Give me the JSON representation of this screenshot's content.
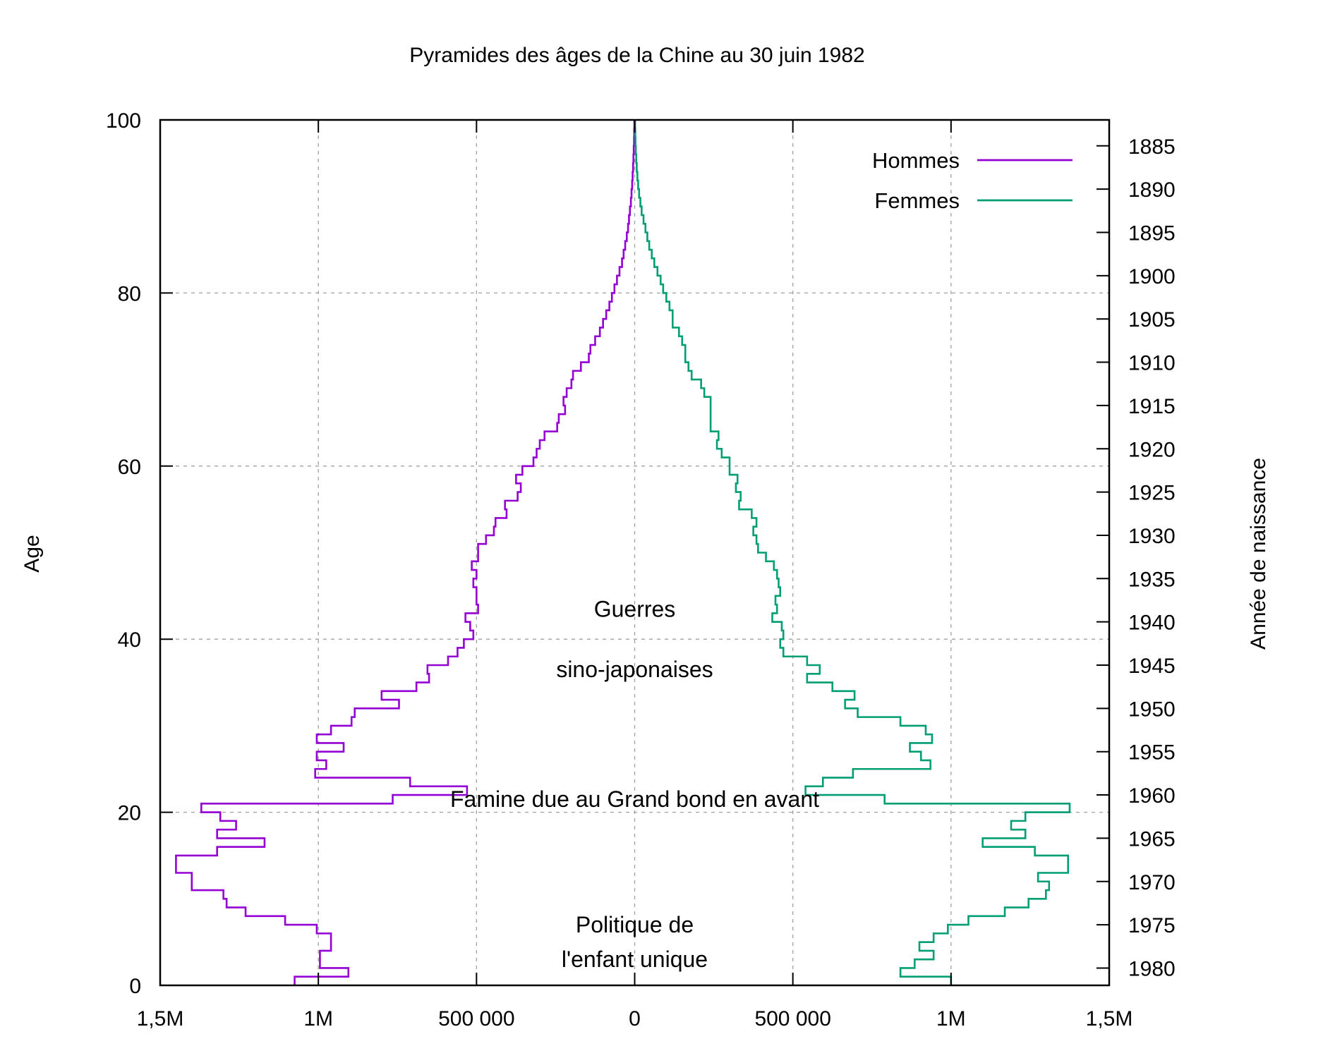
{
  "chart_data": {
    "type": "line",
    "title": "Pyramides des âges de la Chine au 30 juin 1982",
    "ylabel": "Age",
    "y2label": "Année de naissance",
    "xlim": [
      -1500000,
      1500000
    ],
    "ylim": [
      0,
      100
    ],
    "x_ticks": [
      {
        "value": -1500000,
        "label": "1,5M"
      },
      {
        "value": -1000000,
        "label": "1M"
      },
      {
        "value": -500000,
        "label": "500 000"
      },
      {
        "value": 0,
        "label": "0"
      },
      {
        "value": 500000,
        "label": "500 000"
      },
      {
        "value": 1000000,
        "label": "1M"
      },
      {
        "value": 1500000,
        "label": "1,5M"
      }
    ],
    "y_ticks": [
      {
        "value": 0,
        "label": "0"
      },
      {
        "value": 20,
        "label": "20"
      },
      {
        "value": 40,
        "label": "40"
      },
      {
        "value": 60,
        "label": "60"
      },
      {
        "value": 80,
        "label": "80"
      },
      {
        "value": 100,
        "label": "100"
      }
    ],
    "y2_ticks": [
      {
        "age": 97,
        "label": "1885"
      },
      {
        "age": 92,
        "label": "1890"
      },
      {
        "age": 87,
        "label": "1895"
      },
      {
        "age": 82,
        "label": "1900"
      },
      {
        "age": 77,
        "label": "1905"
      },
      {
        "age": 72,
        "label": "1910"
      },
      {
        "age": 67,
        "label": "1915"
      },
      {
        "age": 62,
        "label": "1920"
      },
      {
        "age": 57,
        "label": "1925"
      },
      {
        "age": 52,
        "label": "1930"
      },
      {
        "age": 47,
        "label": "1935"
      },
      {
        "age": 42,
        "label": "1940"
      },
      {
        "age": 37,
        "label": "1945"
      },
      {
        "age": 32,
        "label": "1950"
      },
      {
        "age": 27,
        "label": "1955"
      },
      {
        "age": 22,
        "label": "1960"
      },
      {
        "age": 17,
        "label": "1965"
      },
      {
        "age": 12,
        "label": "1970"
      },
      {
        "age": 7,
        "label": "1975"
      },
      {
        "age": 2,
        "label": "1980"
      }
    ],
    "grid": true,
    "legend_position": "top-right",
    "age_groups": [
      0,
      1,
      2,
      3,
      4,
      5,
      6,
      7,
      8,
      9,
      10,
      11,
      12,
      13,
      14,
      15,
      16,
      17,
      18,
      19,
      20,
      21,
      22,
      23,
      24,
      25,
      26,
      27,
      28,
      29,
      30,
      31,
      32,
      33,
      34,
      35,
      36,
      37,
      38,
      39,
      40,
      41,
      42,
      43,
      44,
      45,
      46,
      47,
      48,
      49,
      50,
      51,
      52,
      53,
      54,
      55,
      56,
      57,
      58,
      59,
      60,
      61,
      62,
      63,
      64,
      65,
      66,
      67,
      68,
      69,
      70,
      71,
      72,
      73,
      74,
      75,
      76,
      77,
      78,
      79,
      80,
      81,
      82,
      83,
      84,
      85,
      86,
      87,
      88,
      89,
      90,
      91,
      92,
      93,
      94,
      95,
      96,
      97,
      98,
      99
    ],
    "series": [
      {
        "name": "Hommes",
        "color": "#9400d3",
        "values": [
          1075000,
          905000,
          995000,
          995000,
          960000,
          960000,
          1005000,
          1105000,
          1230000,
          1290000,
          1300000,
          1400000,
          1400000,
          1450000,
          1450000,
          1320000,
          1170000,
          1320000,
          1260000,
          1310000,
          1370000,
          765000,
          530000,
          710000,
          1010000,
          975000,
          1005000,
          920000,
          1005000,
          960000,
          895000,
          885000,
          745000,
          800000,
          690000,
          650000,
          655000,
          590000,
          560000,
          540000,
          510000,
          520000,
          535000,
          495000,
          500000,
          500000,
          510000,
          500000,
          515000,
          495000,
          495000,
          470000,
          445000,
          440000,
          405000,
          410000,
          370000,
          360000,
          375000,
          355000,
          320000,
          310000,
          300000,
          285000,
          245000,
          240000,
          220000,
          225000,
          215000,
          200000,
          195000,
          170000,
          145000,
          140000,
          125000,
          110000,
          100000,
          90000,
          80000,
          72000,
          64000,
          56000,
          48000,
          40000,
          35000,
          30000,
          25000,
          21000,
          18000,
          15000,
          12000,
          10000,
          8000,
          6500,
          5000,
          4000,
          3000,
          2000,
          1500,
          1000
        ]
      },
      {
        "name": "Femmes",
        "color": "#009e73",
        "values": [
          1000000,
          840000,
          885000,
          945000,
          900000,
          945000,
          990000,
          1055000,
          1170000,
          1245000,
          1300000,
          1310000,
          1275000,
          1370000,
          1370000,
          1265000,
          1100000,
          1235000,
          1190000,
          1235000,
          1375000,
          790000,
          540000,
          595000,
          690000,
          935000,
          905000,
          870000,
          940000,
          920000,
          840000,
          705000,
          665000,
          695000,
          625000,
          545000,
          585000,
          545000,
          470000,
          460000,
          470000,
          465000,
          435000,
          450000,
          445000,
          460000,
          455000,
          450000,
          440000,
          415000,
          390000,
          385000,
          375000,
          385000,
          370000,
          330000,
          335000,
          320000,
          325000,
          300000,
          300000,
          275000,
          260000,
          265000,
          240000,
          240000,
          240000,
          240000,
          220000,
          210000,
          180000,
          170000,
          160000,
          160000,
          150000,
          140000,
          120000,
          120000,
          110000,
          100000,
          90000,
          82000,
          72000,
          62000,
          54000,
          46000,
          40000,
          34000,
          28000,
          22000,
          18000,
          14000,
          11000,
          8500,
          6500,
          5000,
          3500,
          2500,
          1800,
          1200
        ]
      }
    ],
    "annotations": [
      {
        "text": "Guerres",
        "x": 0,
        "y": 43.5
      },
      {
        "text": "sino-japonaises",
        "x": 0,
        "y": 36.5
      },
      {
        "text": "Famine due au Grand bond en avant",
        "x": 0,
        "y": 21.5
      },
      {
        "text": "Politique de",
        "x": 0,
        "y": 7
      },
      {
        "text": "l'enfant unique",
        "x": 0,
        "y": 3
      }
    ]
  }
}
